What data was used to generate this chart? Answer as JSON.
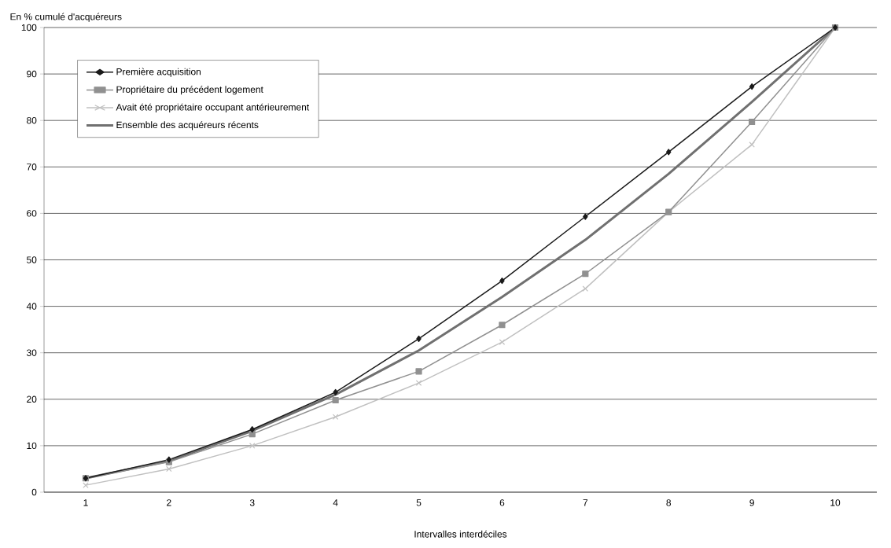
{
  "chart_data": {
    "type": "line",
    "xlabel": "Intervalles interdéciles",
    "ylabel": "En % cumulé d'acquéreurs",
    "categories": [
      "1",
      "2",
      "3",
      "4",
      "5",
      "6",
      "7",
      "8",
      "9",
      "10"
    ],
    "series": [
      {
        "name": "Première acquisition",
        "color": "#1a1a1a",
        "marker": "diamond",
        "values": [
          3,
          7,
          13.5,
          21.5,
          33,
          45.5,
          59.3,
          73.2,
          87.3,
          100
        ]
      },
      {
        "name": "Propriétaire du précédent logement",
        "color": "#909090",
        "marker": "square",
        "values": [
          3,
          6.5,
          12.5,
          19.8,
          26,
          36,
          47,
          60.3,
          79.7,
          100
        ]
      },
      {
        "name": "Avait été propriétaire occupant antérieurement",
        "color": "#c0c0c0",
        "marker": "cross",
        "values": [
          1.5,
          5,
          10,
          16.2,
          23.5,
          32.3,
          43.8,
          60.3,
          74.8,
          100
        ]
      },
      {
        "name": "Ensemble des acquéreurs récents",
        "color": "#707070",
        "marker": "none",
        "values": [
          3,
          6.7,
          13.2,
          21,
          30.5,
          42,
          54.3,
          68.5,
          84,
          100
        ]
      }
    ],
    "ylim": [
      0,
      100
    ],
    "yticks": [
      0,
      10,
      20,
      30,
      40,
      50,
      60,
      70,
      80,
      90,
      100
    ],
    "grid": "y",
    "legend": "top left"
  }
}
